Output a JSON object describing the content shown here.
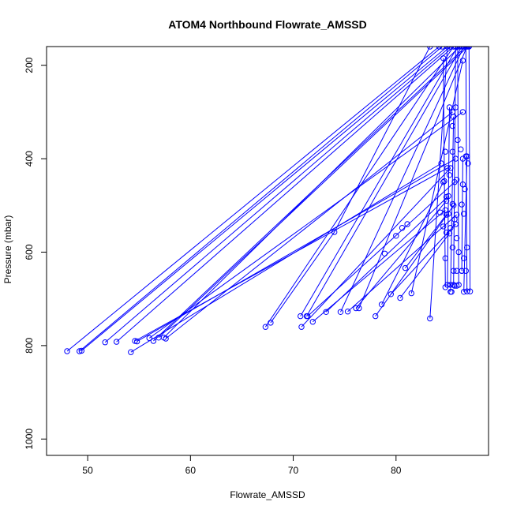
{
  "chart_data": {
    "type": "line",
    "title": "ATOM4 Northbound Flowrate_AMSSD",
    "xlabel": "Flowrate_AMSSD",
    "ylabel": "Pressure (mbar)",
    "xlim": [
      46,
      89
    ],
    "ylim": [
      1035,
      160
    ],
    "y_reversed": true,
    "x_ticks": [
      50,
      60,
      70,
      80
    ],
    "y_ticks": [
      200,
      400,
      600,
      800,
      1000
    ],
    "grid": false,
    "legend": "none",
    "line_color": "#0000ff",
    "marker": "open-circle",
    "series": [
      {
        "values": [
          [
            48.0,
            812
          ],
          [
            84.2,
            160
          ]
        ]
      },
      {
        "values": [
          [
            49.2,
            812
          ],
          [
            84.5,
            160
          ]
        ]
      },
      {
        "values": [
          [
            49.4,
            811
          ],
          [
            85.0,
            160
          ]
        ]
      },
      {
        "values": [
          [
            51.7,
            793
          ],
          [
            85.3,
            160
          ]
        ]
      },
      {
        "values": [
          [
            52.8,
            792
          ],
          [
            85.6,
            160
          ]
        ]
      },
      {
        "values": [
          [
            54.2,
            814
          ],
          [
            84.4,
            410
          ]
        ]
      },
      {
        "values": [
          [
            54.6,
            790
          ],
          [
            85.0,
            420
          ]
        ]
      },
      {
        "values": [
          [
            54.8,
            791
          ],
          [
            85.8,
            400
          ]
        ]
      },
      {
        "values": [
          [
            56.0,
            784
          ],
          [
            86.5,
            300
          ]
        ]
      },
      {
        "values": [
          [
            56.4,
            790
          ],
          [
            86.8,
            160
          ]
        ]
      },
      {
        "values": [
          [
            56.9,
            783
          ],
          [
            87.0,
            160
          ]
        ]
      },
      {
        "values": [
          [
            57.4,
            783
          ],
          [
            86.2,
            160
          ]
        ]
      },
      {
        "values": [
          [
            57.6,
            785
          ],
          [
            85.5,
            300
          ]
        ]
      },
      {
        "values": [
          [
            67.3,
            760
          ],
          [
            85.6,
            160
          ]
        ]
      },
      {
        "values": [
          [
            67.8,
            751
          ],
          [
            74.0,
            557
          ],
          [
            83.3,
            160
          ]
        ]
      },
      {
        "values": [
          [
            70.7,
            737
          ],
          [
            86.0,
            160
          ]
        ]
      },
      {
        "values": [
          [
            70.8,
            760
          ],
          [
            85.3,
            420
          ]
        ]
      },
      {
        "values": [
          [
            71.3,
            737
          ],
          [
            86.4,
            160
          ]
        ]
      },
      {
        "values": [
          [
            71.4,
            737
          ],
          [
            85.7,
            450
          ]
        ]
      },
      {
        "values": [
          [
            71.9,
            749
          ],
          [
            84.8,
            510
          ]
        ]
      },
      {
        "values": [
          [
            73.2,
            728
          ],
          [
            85.1,
            480
          ]
        ]
      },
      {
        "values": [
          [
            74.6,
            728
          ],
          [
            86.6,
            160
          ]
        ]
      },
      {
        "values": [
          [
            75.3,
            727
          ],
          [
            85.9,
            520
          ]
        ]
      },
      {
        "values": [
          [
            76.1,
            720
          ],
          [
            84.9,
            490
          ]
        ]
      },
      {
        "values": [
          [
            76.4,
            720
          ],
          [
            86.9,
            160
          ]
        ]
      },
      {
        "values": [
          [
            78.0,
            737
          ],
          [
            85.6,
            500
          ]
        ]
      },
      {
        "values": [
          [
            78.6,
            712
          ],
          [
            84.6,
            450
          ]
        ]
      },
      {
        "values": [
          [
            79.5,
            690
          ],
          [
            85.8,
            540
          ]
        ]
      },
      {
        "values": [
          [
            80.4,
            698
          ],
          [
            85.2,
            560
          ]
        ]
      },
      {
        "values": [
          [
            80.9,
            634
          ],
          [
            84.9,
            520
          ]
        ]
      },
      {
        "values": [
          [
            81.5,
            688
          ],
          [
            86.5,
            190
          ]
        ]
      },
      {
        "values": [
          [
            83.3,
            742
          ],
          [
            85.0,
            160
          ]
        ]
      },
      {
        "values": [
          [
            84.8,
            675
          ],
          [
            84.6,
            185
          ]
        ]
      },
      {
        "values": [
          [
            85.0,
            670
          ],
          [
            85.2,
            290
          ]
        ]
      },
      {
        "values": [
          [
            85.3,
            685
          ],
          [
            85.6,
            310
          ]
        ]
      },
      {
        "values": [
          [
            85.6,
            670
          ],
          [
            85.8,
            160
          ]
        ]
      },
      {
        "values": [
          [
            86.1,
            670
          ],
          [
            86.0,
            160
          ]
        ]
      },
      {
        "values": [
          [
            86.4,
            640
          ],
          [
            86.5,
            400
          ]
        ]
      },
      {
        "values": [
          [
            86.6,
            685
          ],
          [
            86.9,
            395
          ]
        ]
      },
      {
        "values": [
          [
            86.9,
            684
          ],
          [
            86.8,
            160
          ]
        ]
      },
      {
        "values": [
          [
            87.2,
            684
          ],
          [
            87.1,
            160
          ]
        ]
      }
    ],
    "scatter_points": [
      [
        78.9,
        603
      ],
      [
        80.6,
        548
      ],
      [
        80.0,
        565
      ],
      [
        81.1,
        540
      ],
      [
        84.8,
        385
      ],
      [
        85.5,
        385
      ],
      [
        86.3,
        380
      ],
      [
        86.8,
        395
      ],
      [
        87.0,
        410
      ],
      [
        85.2,
        435
      ],
      [
        84.7,
        448
      ],
      [
        85.9,
        445
      ],
      [
        86.5,
        455
      ],
      [
        86.7,
        465
      ],
      [
        84.9,
        482
      ],
      [
        85.5,
        497
      ],
      [
        86.4,
        498
      ],
      [
        86.6,
        518
      ],
      [
        85.1,
        518
      ],
      [
        84.3,
        515
      ],
      [
        85.7,
        530
      ],
      [
        84.6,
        545
      ],
      [
        85.3,
        548
      ],
      [
        84.9,
        558
      ],
      [
        85.9,
        570
      ],
      [
        85.5,
        590
      ],
      [
        86.9,
        590
      ],
      [
        86.1,
        600
      ],
      [
        84.8,
        613
      ],
      [
        86.6,
        613
      ],
      [
        85.9,
        640
      ],
      [
        85.6,
        640
      ],
      [
        86.4,
        640
      ],
      [
        86.8,
        640
      ],
      [
        85.3,
        670
      ],
      [
        85.7,
        672
      ],
      [
        85.9,
        672
      ],
      [
        85.4,
        685
      ],
      [
        85.8,
        290
      ],
      [
        85.5,
        330
      ],
      [
        86.0,
        360
      ]
    ]
  }
}
